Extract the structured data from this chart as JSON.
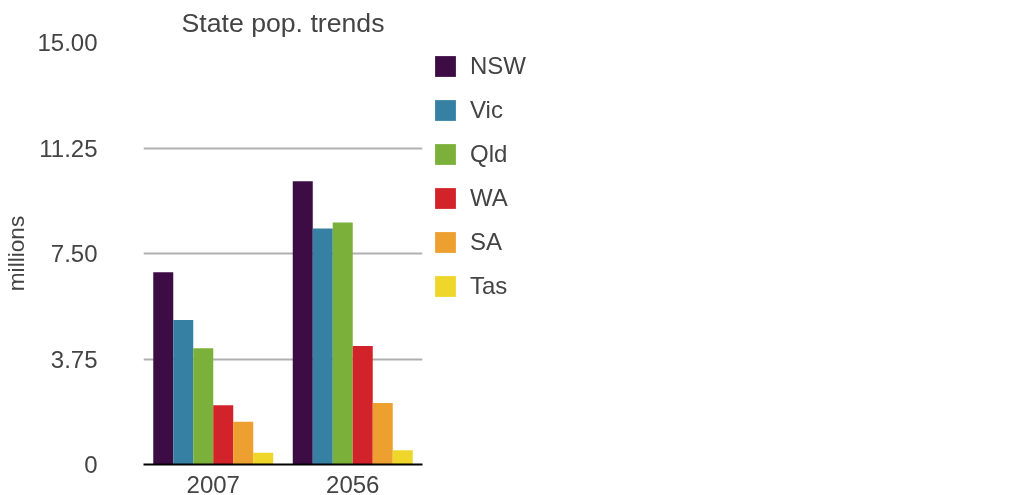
{
  "chart_data": {
    "type": "bar",
    "title": "State pop. trends",
    "ylabel": "millions",
    "categories": [
      "2007",
      "2056"
    ],
    "series": [
      {
        "name": "NSW",
        "color": "#3d0c45",
        "values": [
          6.83,
          10.07
        ]
      },
      {
        "name": "Vic",
        "color": "#3580a3",
        "values": [
          5.14,
          8.39
        ]
      },
      {
        "name": "Qld",
        "color": "#7bb03a",
        "values": [
          4.13,
          8.6
        ]
      },
      {
        "name": "WA",
        "color": "#d2232a",
        "values": [
          2.11,
          4.21
        ]
      },
      {
        "name": "SA",
        "color": "#eda02f",
        "values": [
          1.52,
          2.19
        ]
      },
      {
        "name": "Tas",
        "color": "#efd62a",
        "values": [
          0.42,
          0.51
        ]
      }
    ],
    "ylim": [
      0,
      15
    ],
    "yticks": [
      0,
      {
        "value": 3.75,
        "label": "3.75"
      },
      {
        "value": 7.5,
        "label": "7.50"
      },
      {
        "value": 11.25,
        "label": "11.25"
      },
      {
        "value": 15,
        "label": "15.00"
      }
    ],
    "grid": "y",
    "legend": "right"
  }
}
